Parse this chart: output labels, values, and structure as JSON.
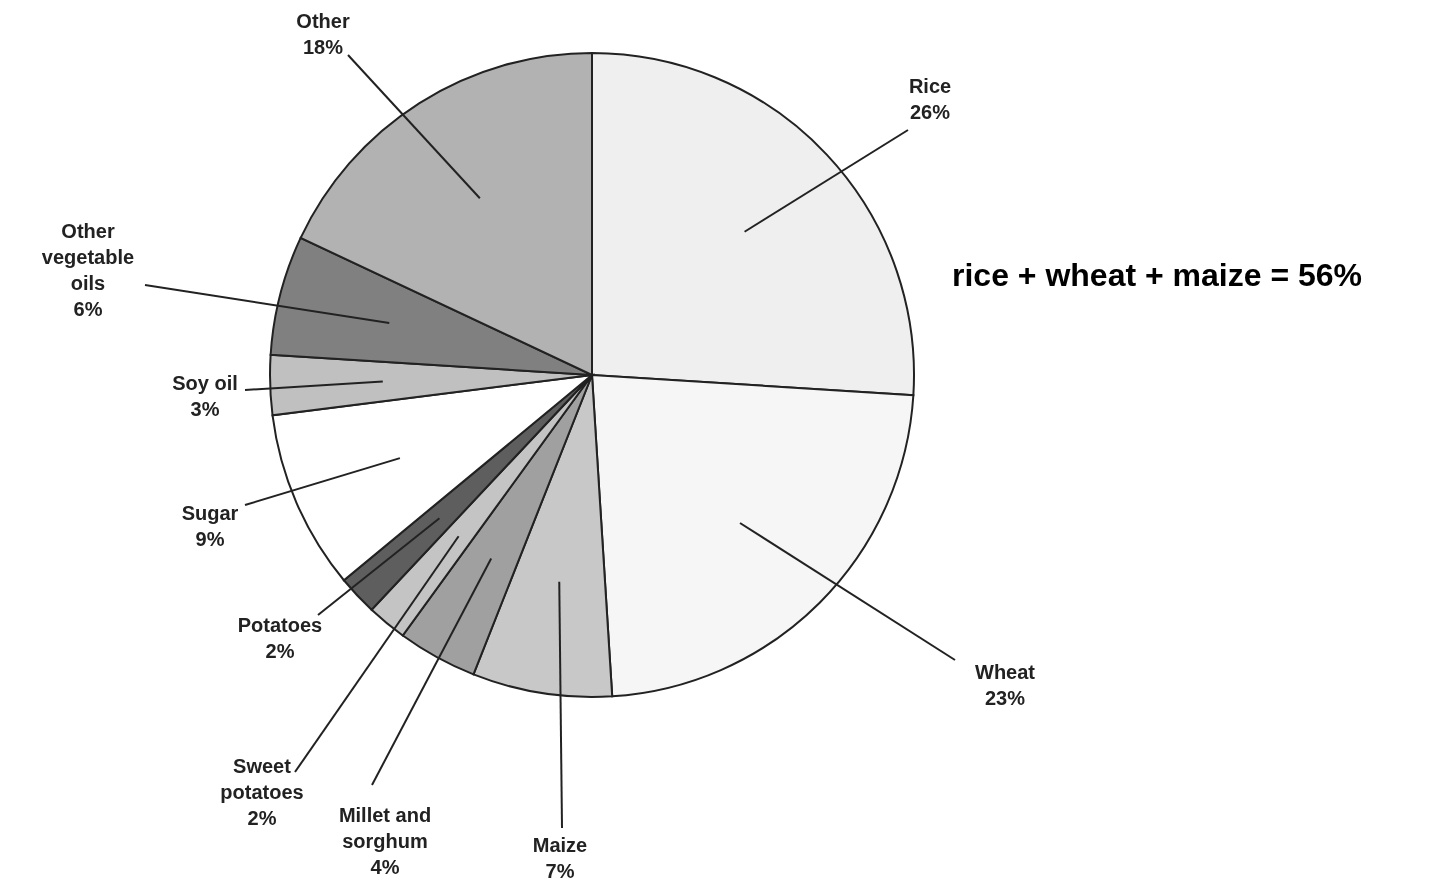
{
  "chart_data": {
    "type": "pie",
    "categories": [
      "Rice",
      "Wheat",
      "Maize",
      "Millet and sorghum",
      "Sweet potatoes",
      "Potatoes",
      "Sugar",
      "Soy oil",
      "Other vegetable oils",
      "Other"
    ],
    "values": [
      26,
      23,
      7,
      4,
      2,
      2,
      9,
      3,
      6,
      18
    ],
    "value_labels": [
      "26%",
      "23%",
      "7%",
      "4%",
      "2%",
      "2%",
      "9%",
      "3%",
      "6%",
      "18%"
    ],
    "colors": [
      "#efefef",
      "#f6f6f6",
      "#c8c8c8",
      "#a0a0a0",
      "#c4c4c4",
      "#5e5e5e",
      "#ffffff",
      "#c0c0c0",
      "#808080",
      "#b2b2b2"
    ],
    "annotations": [
      "rice + wheat + maize = 56%"
    ]
  }
}
